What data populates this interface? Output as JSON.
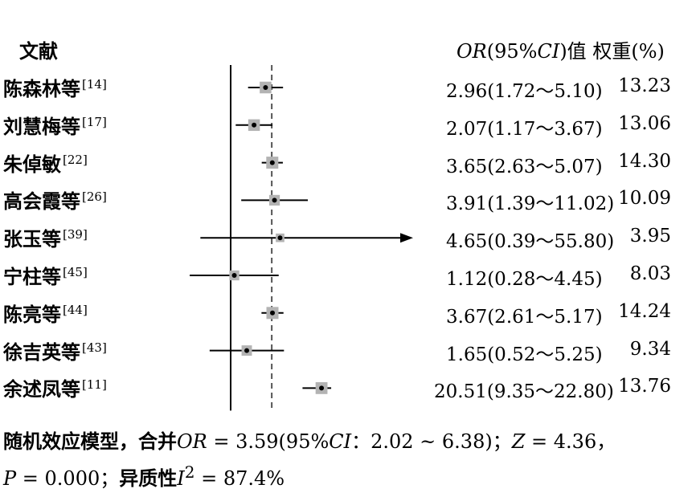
{
  "header": {
    "study_col": "文献",
    "or_label": "OR",
    "or_mid": "(95%",
    "ci_label": "CI",
    "or_tail": ")值",
    "weight_label": "权重(%)"
  },
  "chart_data": {
    "type": "forest",
    "pooled_or": 3.59,
    "null_or": 1,
    "rows": [
      {
        "study": "陈森林等",
        "ref": "[14]",
        "or": 2.96,
        "lo": 1.72,
        "hi": 5.1,
        "ci_text": "2.96(1.72～5.10)",
        "weight": 13.23,
        "weight_text": "13.23"
      },
      {
        "study": "刘慧梅等",
        "ref": "[17]",
        "or": 2.07,
        "lo": 1.17,
        "hi": 3.67,
        "ci_text": "2.07(1.17～3.67)",
        "weight": 13.06,
        "weight_text": "13.06"
      },
      {
        "study": "朱倬敏",
        "ref": "[22]",
        "or": 3.65,
        "lo": 2.63,
        "hi": 5.07,
        "ci_text": "3.65(2.63～5.07)",
        "weight": 14.3,
        "weight_text": "14.30"
      },
      {
        "study": "高会霞等",
        "ref": "[26]",
        "or": 3.91,
        "lo": 1.39,
        "hi": 11.02,
        "ci_text": "3.91(1.39～11.02)",
        "weight": 10.09,
        "weight_text": "10.09"
      },
      {
        "study": "张玉等",
        "ref": "[39]",
        "or": 4.65,
        "lo": 0.39,
        "hi": 55.8,
        "ci_text": "4.65(0.39～55.80)",
        "weight": 3.95,
        "weight_text": "3.95",
        "arrow": true
      },
      {
        "study": "宁柱等",
        "ref": "[45]",
        "or": 1.12,
        "lo": 0.28,
        "hi": 4.45,
        "ci_text": "1.12(0.28～4.45)",
        "weight": 8.03,
        "weight_text": "8.03"
      },
      {
        "study": "陈亮等",
        "ref": "[44]",
        "or": 3.67,
        "lo": 2.61,
        "hi": 5.17,
        "ci_text": "3.67(2.61～5.17)",
        "weight": 14.24,
        "weight_text": "14.24"
      },
      {
        "study": "徐吉英等",
        "ref": "[43]",
        "or": 1.65,
        "lo": 0.52,
        "hi": 5.25,
        "ci_text": "1.65(0.52～5.25)",
        "weight": 9.34,
        "weight_text": "9.34"
      },
      {
        "study": "余述凤等",
        "ref": "[11]",
        "or": 20.51,
        "lo": 9.35,
        "hi": 22.8,
        "ci_text": "20.51(9.35～22.80)",
        "weight": 13.76,
        "weight_text": "13.76"
      }
    ]
  },
  "summary": {
    "line1_a": "随机效应模型，合并",
    "line1_or": "OR",
    "line1_b": " = 3.59(95%",
    "line1_ci": "CI",
    "line1_c": "：2.02 ~ 6.38)；",
    "line1_z": "Z",
    "line1_d": " = 4.36，",
    "line2_p": "P",
    "line2_a": " = 0.000；",
    "line2_b": "异质性",
    "line2_i": "I",
    "line2_sup": "2",
    "line2_c": " = 87.4%"
  },
  "colors": {
    "box": "#b3b3b3",
    "line": "#000000",
    "dashed": "#555555"
  }
}
